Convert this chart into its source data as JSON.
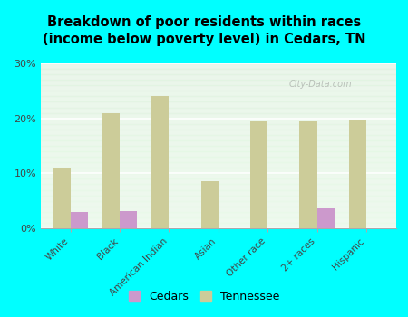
{
  "title": "Breakdown of poor residents within races\n(income below poverty level) in Cedars, TN",
  "categories": [
    "White",
    "Black",
    "American Indian",
    "Asian",
    "Other race",
    "2+ races",
    "Hispanic"
  ],
  "cedars_values": [
    3.0,
    3.2,
    0.0,
    0.0,
    0.0,
    3.7,
    0.0
  ],
  "tennessee_values": [
    11.0,
    21.0,
    24.0,
    8.5,
    19.5,
    19.5,
    19.8
  ],
  "cedars_color": "#cc99cc",
  "tennessee_color": "#cccc99",
  "background_color": "#00ffff",
  "ylim": [
    0,
    30
  ],
  "yticks": [
    0,
    10,
    20,
    30
  ],
  "ytick_labels": [
    "0%",
    "10%",
    "20%",
    "30%"
  ],
  "bar_width": 0.35,
  "watermark": "City-Data.com",
  "legend_cedars": "Cedars",
  "legend_tennessee": "Tennessee"
}
